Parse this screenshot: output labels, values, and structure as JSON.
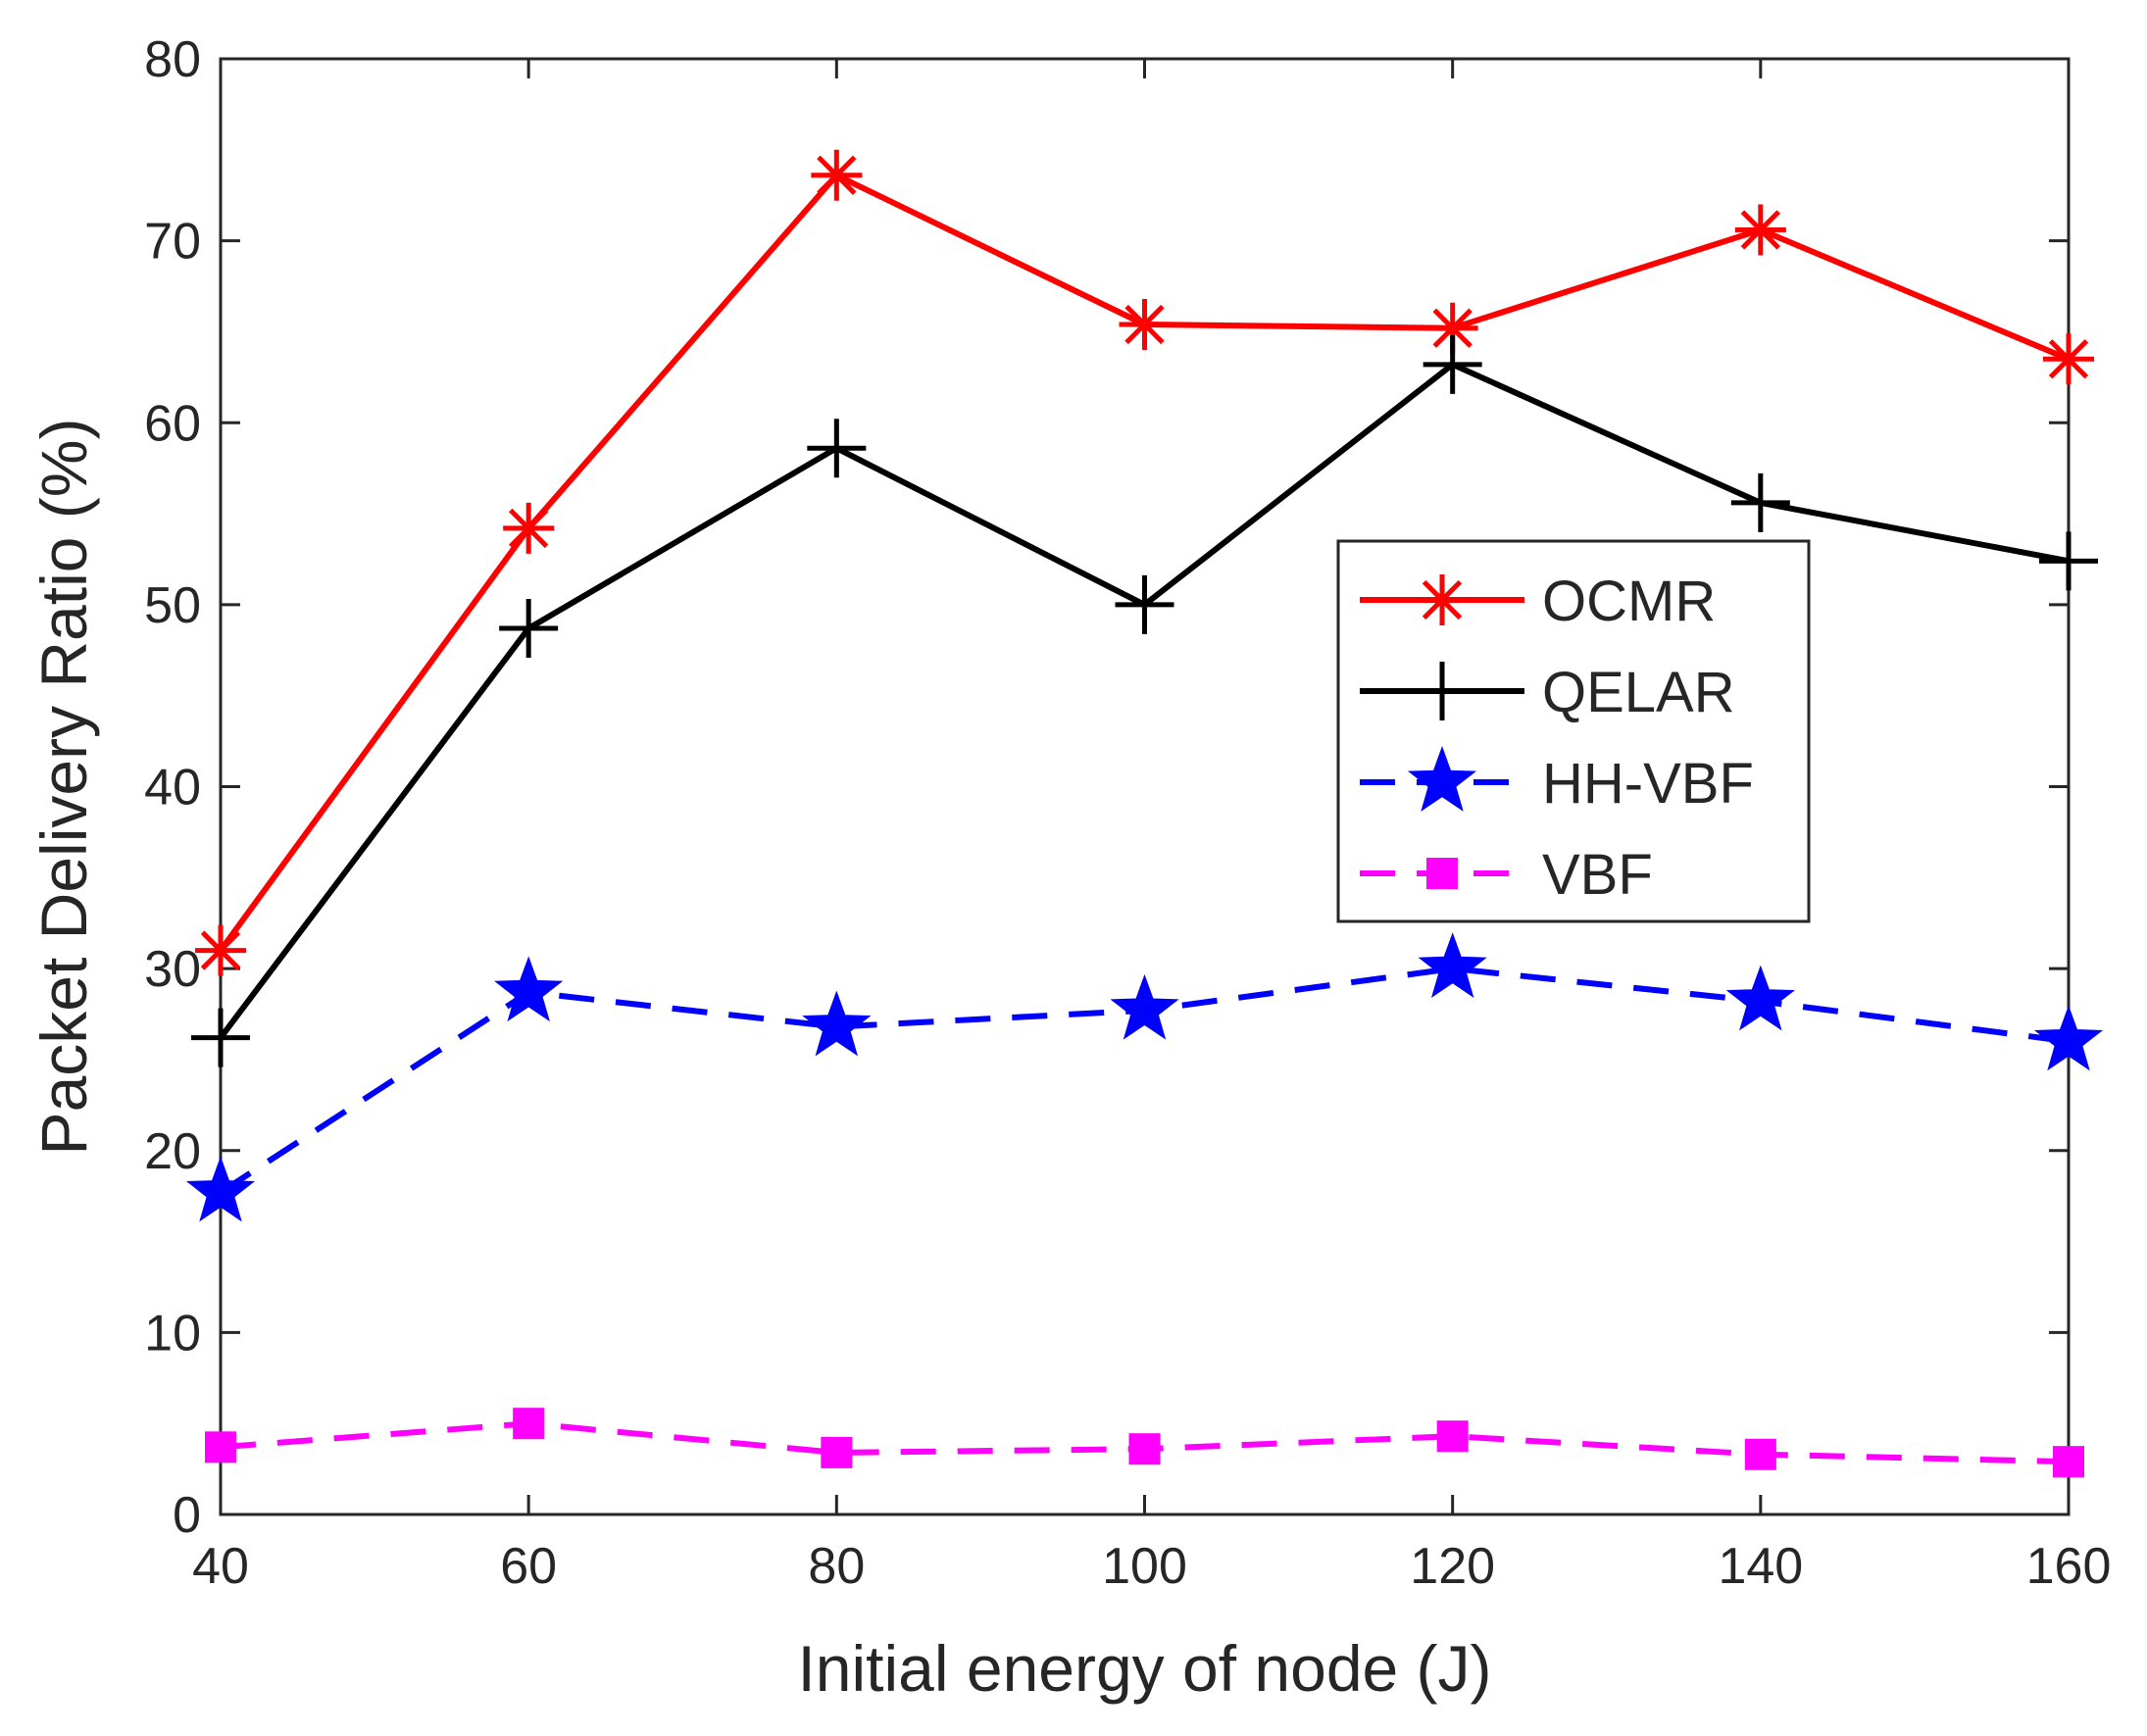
{
  "chart_data": {
    "type": "line",
    "title": "",
    "xlabel": "Initial energy of node (J)",
    "ylabel": "Packet Delivery Ratio (%)",
    "x": [
      40,
      60,
      80,
      100,
      120,
      140,
      160
    ],
    "xlim": [
      40,
      160
    ],
    "ylim": [
      0,
      80
    ],
    "xticks": [
      "40",
      "60",
      "80",
      "100",
      "120",
      "140",
      "160"
    ],
    "yticks": [
      "0",
      "10",
      "20",
      "30",
      "40",
      "50",
      "60",
      "70",
      "80"
    ],
    "grid": false,
    "legend_position": "center-right",
    "series": [
      {
        "name": "OCMR",
        "values": [
          31.0,
          54.2,
          73.6,
          65.4,
          65.2,
          70.6,
          63.5
        ],
        "color": "#ff0000",
        "line": "solid",
        "marker": "asterisk"
      },
      {
        "name": "QELAR",
        "values": [
          26.2,
          48.7,
          58.6,
          50.0,
          63.2,
          55.6,
          52.4
        ],
        "color": "#000000",
        "line": "solid",
        "marker": "plus"
      },
      {
        "name": "HH-VBF",
        "values": [
          17.7,
          28.7,
          26.8,
          27.7,
          30.0,
          28.2,
          26.0
        ],
        "color": "#0000ff",
        "line": "dashed",
        "marker": "star"
      },
      {
        "name": "VBF",
        "values": [
          3.7,
          5.0,
          3.4,
          3.6,
          4.3,
          3.3,
          2.9
        ],
        "color": "#ff00ff",
        "line": "dashed",
        "marker": "square"
      }
    ]
  }
}
